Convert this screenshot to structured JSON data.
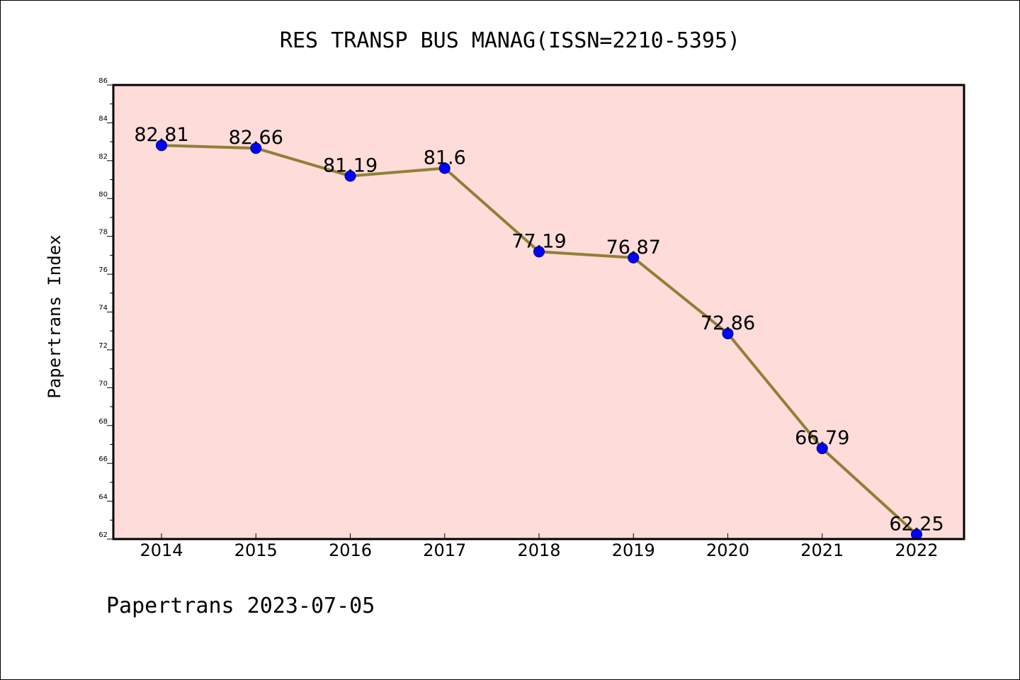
{
  "chart_data": {
    "type": "line",
    "title": "RES TRANSP BUS MANAG(ISSN=2210-5395)",
    "xlabel": "",
    "ylabel": "Papertrans Index",
    "categories": [
      "2014",
      "2015",
      "2016",
      "2017",
      "2018",
      "2019",
      "2020",
      "2021",
      "2022"
    ],
    "values": [
      82.81,
      82.66,
      81.19,
      81.6,
      77.19,
      76.87,
      72.86,
      66.79,
      62.25
    ],
    "data_labels": [
      "82.81",
      "82.66",
      "81.19",
      "81.6",
      "77.19",
      "76.87",
      "72.86",
      "66.79",
      "62.25"
    ],
    "ylim": [
      62,
      86
    ],
    "yticks": [
      "62",
      "64",
      "66",
      "68",
      "70",
      "72",
      "74",
      "76",
      "78",
      "80",
      "82",
      "84",
      "86"
    ],
    "grid": false,
    "legend": "none",
    "colors": {
      "plot_background": "#fddcd9",
      "line": "#8f8038",
      "marker": "#0000ff",
      "marker_edge": "#000080",
      "frame": "#000000"
    }
  },
  "footer": {
    "text": "Papertrans 2023-07-05"
  }
}
